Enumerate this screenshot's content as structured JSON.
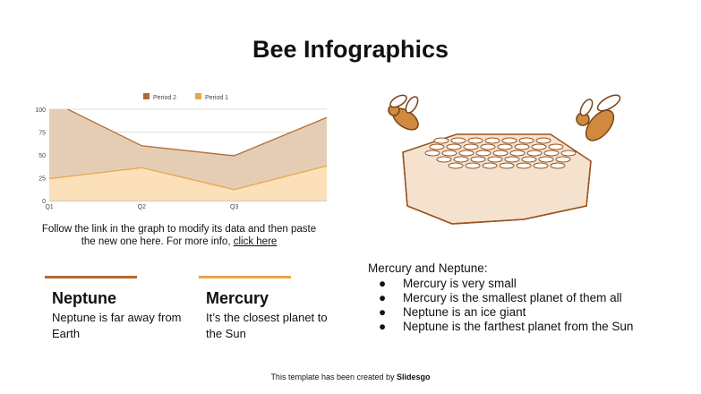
{
  "title": "Bee Infographics",
  "chart_data": {
    "type": "area",
    "categories": [
      "Q1",
      "Q2",
      "Q3",
      ""
    ],
    "ylim": [
      0,
      100
    ],
    "yticks": [
      0,
      25,
      50,
      75,
      100
    ],
    "grid": true,
    "legend": "top",
    "series": [
      {
        "name": "Period 2",
        "values": [
          110,
          60,
          49,
          91
        ],
        "color": "#b5692f"
      },
      {
        "name": "Period 1",
        "values": [
          24,
          36,
          12,
          38
        ],
        "color": "#e8a54a"
      }
    ]
  },
  "note": {
    "text": "Follow the link in the graph to modify its data and then paste the new one here. For more info, ",
    "link": "click here"
  },
  "cards": [
    {
      "title": "Neptune",
      "body": "Neptune is far away from Earth",
      "color": "#b5692f"
    },
    {
      "title": "Mercury",
      "body": "It’s the closest planet to the Sun",
      "color": "#e8a54a"
    }
  ],
  "list": {
    "heading": "Mercury and Neptune:",
    "bullet": "●",
    "items": [
      "Mercury is very small",
      "Mercury is the smallest planet of them all",
      "Neptune is an ice giant",
      "Neptune is the farthest planet from the Sun"
    ]
  },
  "footer": {
    "text": "This template has been created by ",
    "brand": "Slidesgo"
  },
  "illustration": {
    "icons": [
      "bee-icon",
      "honeycomb-icon"
    ],
    "color": "#b5692f"
  }
}
